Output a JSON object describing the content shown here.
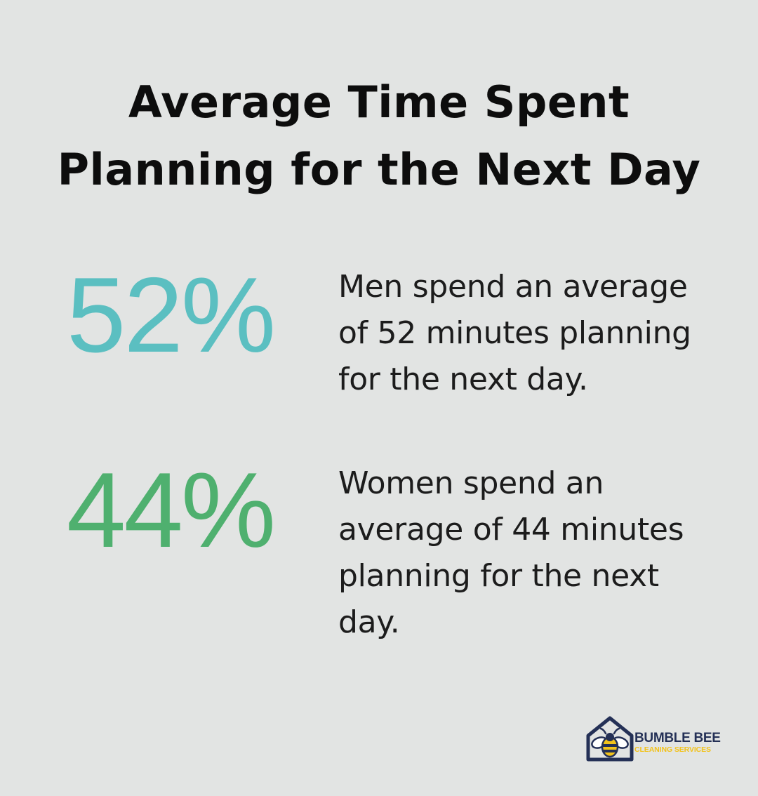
{
  "header": {
    "title": "Average Time Spent Planning for the Next Day"
  },
  "stats": [
    {
      "value": "52%",
      "text": "Men spend an average of 52 minutes planning for the next day.",
      "color": "#5bbfc1"
    },
    {
      "value": "44%",
      "text": "Women spend an average of 44 minutes planning for the next day.",
      "color": "#4fb06f"
    }
  ],
  "logo": {
    "name": "BUMBLE BEE",
    "tagline": "CLEANING SERVICES",
    "icon": "bee-house-icon",
    "primary_color": "#243056",
    "accent_color": "#f2c21b"
  },
  "background_color": "#e2e4e3"
}
